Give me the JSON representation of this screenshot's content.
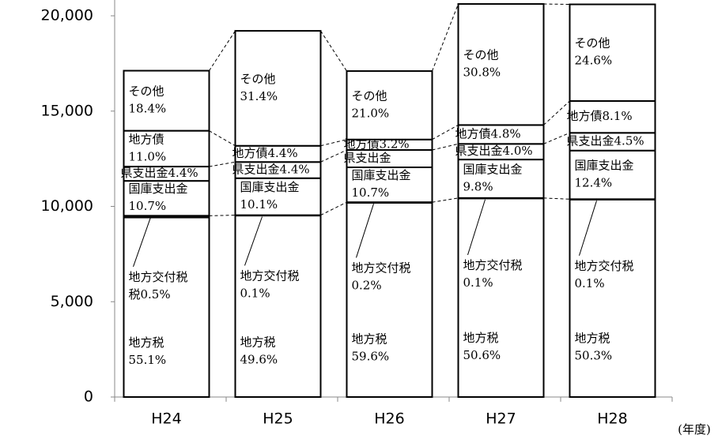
{
  "chart_data": {
    "type": "stacked_bar",
    "categories": [
      "H24",
      "H25",
      "H26",
      "H27",
      "H28"
    ],
    "x_unit": "(年度)",
    "ylim": [
      0,
      20800
    ],
    "yticks": [
      0,
      {
        "value": 5000,
        "label": "5,000"
      },
      {
        "value": 10000,
        "label": "10,000"
      },
      {
        "value": 15000,
        "label": "15,000"
      },
      {
        "value": 20000,
        "label": "20,000"
      }
    ],
    "color": "#ffffff",
    "series": [
      {
        "name": "地方税",
        "values": [
          9420,
          9520,
          10190,
          10420,
          10360
        ],
        "labels": [
          "55.1%",
          "49.6%",
          "59.6%",
          "50.6%",
          "50.3%"
        ]
      },
      {
        "name": "地方交付税",
        "values": [
          90,
          20,
          30,
          20,
          20
        ],
        "labels": [
          "税0.5%",
          "0.1%",
          "0.2%",
          "0.1%",
          "0.1%"
        ]
      },
      {
        "name": "国庫支出金",
        "values": [
          1830,
          1940,
          1830,
          2020,
          2550
        ],
        "labels": [
          "10.7%",
          "10.1%",
          "10.7%",
          "9.8%",
          "12.4%"
        ]
      },
      {
        "name": "県支出金",
        "values": [
          750,
          850,
          910,
          820,
          930
        ],
        "labels": [
          "4.4%",
          "4.4%",
          null,
          "4.0%",
          "4.5%"
        ]
      },
      {
        "name": "地方債",
        "values": [
          1880,
          850,
          550,
          990,
          1670
        ],
        "labels": [
          "11.0%",
          "4.4%",
          "3.2%",
          "4.8%",
          "8.1%"
        ]
      },
      {
        "name": "その他",
        "values": [
          3150,
          6030,
          3590,
          6350,
          5070
        ],
        "labels": [
          "18.4%",
          "31.4%",
          "21.0%",
          "30.8%",
          "24.6%"
        ]
      }
    ]
  }
}
